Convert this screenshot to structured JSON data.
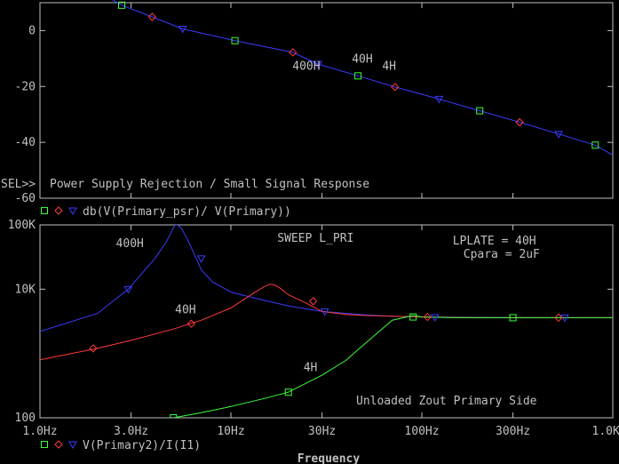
{
  "colors": {
    "background": "#000000",
    "axes": "#c0c0c0",
    "text": "#c0c0c0",
    "series_blue": "#3b3bff",
    "series_red": "#ff3b3b",
    "series_green": "#3bff3b"
  },
  "sel_marker": "SEL>>",
  "x_axis": {
    "label": "Frequency",
    "scale": "log",
    "range": [
      1,
      1000
    ],
    "ticks": [
      {
        "value": 1,
        "label": "1.0Hz"
      },
      {
        "value": 3,
        "label": "3.0Hz"
      },
      {
        "value": 10,
        "label": "10Hz"
      },
      {
        "value": 30,
        "label": "30Hz"
      },
      {
        "value": 100,
        "label": "100Hz"
      },
      {
        "value": 300,
        "label": "300Hz"
      },
      {
        "value": 1000,
        "label": "1.0KHz"
      }
    ]
  },
  "chart_data": [
    {
      "type": "line",
      "title": "Power Supply Rejection / Small Signal Response",
      "legend": "db(V(Primary_psr)/ V(Primary))",
      "y_scale": "linear",
      "ylim": [
        -60,
        10
      ],
      "yticks": [
        {
          "value": 0,
          "label": "0"
        },
        {
          "value": -20,
          "label": "-20"
        },
        {
          "value": -40,
          "label": "-40"
        },
        {
          "value": -60,
          "label": "-60"
        }
      ],
      "series": [
        {
          "marker": "square",
          "color": "#3bff3b",
          "x": [
            2.68,
            10.5,
            46.3,
            201,
            810
          ],
          "y": [
            9.1,
            -3.6,
            -16.2,
            -28.7,
            -41.0
          ]
        },
        {
          "marker": "diamond",
          "color": "#ff3b3b",
          "x": [
            3.87,
            21.1,
            72.3,
            325
          ],
          "y": [
            4.9,
            -7.8,
            -20.2,
            -32.8
          ]
        },
        {
          "marker": "triangle",
          "color": "#3b3bff",
          "x": [
            5.59,
            28.6,
            123,
            521
          ],
          "y": [
            0.6,
            -12.0,
            -24.5,
            -37.0
          ]
        }
      ],
      "annotations": [
        {
          "text": "400H",
          "x": 21,
          "y": -14
        },
        {
          "text": "40H",
          "x": 43,
          "y": -11.5
        },
        {
          "text": "4H",
          "x": 62,
          "y": -14
        }
      ]
    },
    {
      "type": "line",
      "title": "Unloaded Zout Primary Side",
      "legend": "V(Primary2)/I(I1)",
      "y_scale": "log",
      "ylim": [
        100,
        100000
      ],
      "yticks": [
        {
          "value": 100,
          "label": "100"
        },
        {
          "value": 10000,
          "label": "10K"
        },
        {
          "value": 100000,
          "label": "100K"
        }
      ],
      "series": [
        {
          "name": "400H",
          "marker": "triangle",
          "color": "#3b3bff",
          "x": [
            1,
            2,
            2.9,
            4,
            4.6,
            5,
            5.1,
            5.25,
            5.5,
            6,
            7,
            8,
            10,
            14,
            20,
            30,
            50,
            70,
            100,
            200,
            400,
            700,
            1000
          ],
          "y": [
            2200,
            4200,
            10000,
            30000,
            55000,
            90000,
            100000,
            100000,
            90000,
            55000,
            20000,
            13000,
            9000,
            7000,
            5500,
            4500,
            4000,
            3800,
            3700,
            3650,
            3600,
            3600,
            3600
          ]
        },
        {
          "name": "40H",
          "marker": "diamond",
          "color": "#ff3b3b",
          "x": [
            1,
            2,
            3,
            5,
            7,
            10,
            13,
            15,
            16,
            17,
            18,
            20,
            25,
            30,
            40,
            50,
            70,
            100,
            200,
            400,
            700,
            1000
          ],
          "y": [
            800,
            1200,
            1600,
            2400,
            3300,
            5100,
            8500,
            11000,
            12000,
            11600,
            10500,
            8200,
            6000,
            4500,
            4050,
            3900,
            3800,
            3700,
            3600,
            3600,
            3600,
            3600
          ]
        },
        {
          "name": "4H",
          "marker": "square",
          "color": "#3bff3b",
          "x": [
            5,
            7,
            10,
            15,
            20,
            30,
            40,
            50,
            70,
            90,
            100,
            150,
            200,
            300,
            500,
            700,
            1000
          ],
          "y": [
            100,
            120,
            150,
            200,
            250,
            460,
            780,
            1400,
            3300,
            3900,
            3700,
            3600,
            3600,
            3600,
            3600,
            3600,
            3600
          ]
        }
      ],
      "annotations": [
        {
          "text": "400H",
          "x": 2.5,
          "y": 45000
        },
        {
          "text": "40H",
          "x": 5.1,
          "y": 4200
        },
        {
          "text": "4H",
          "x": 24,
          "y": 530
        },
        {
          "text": "SWEEP L_PRI",
          "x": 17.5,
          "y": 55000
        },
        {
          "text": "LPLATE = 40H",
          "x": 145,
          "y": 50000
        },
        {
          "text": "Cpara = 2uF",
          "x": 165,
          "y": 31000
        }
      ]
    }
  ]
}
